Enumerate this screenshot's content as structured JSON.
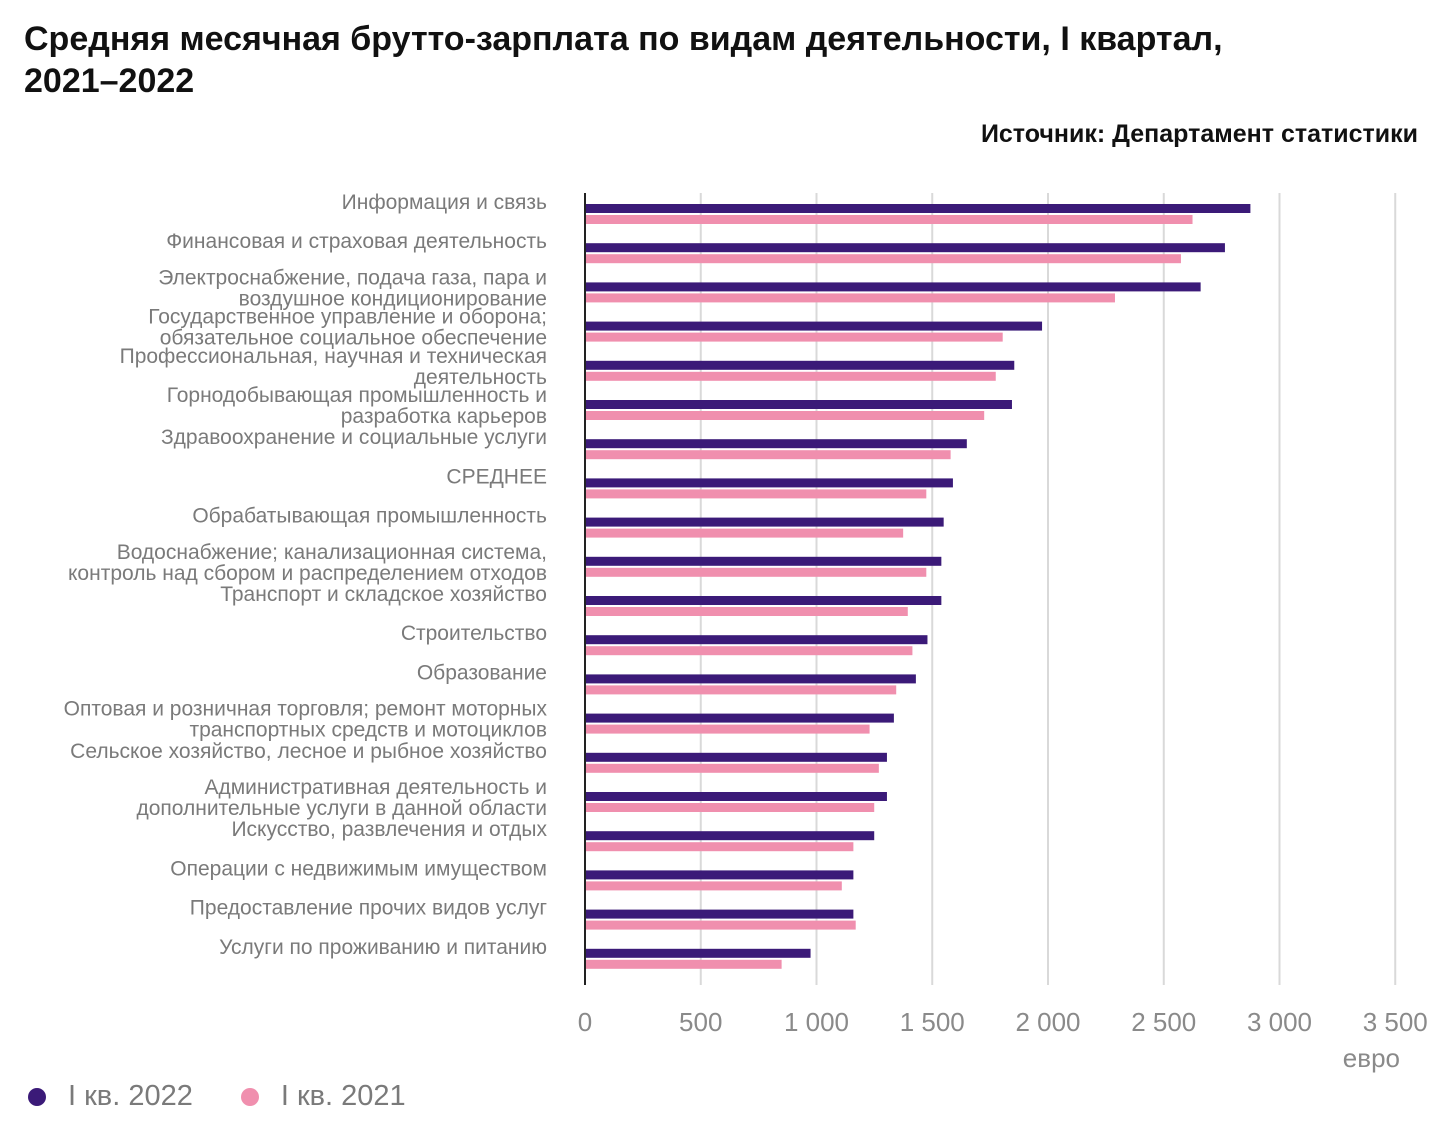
{
  "title": "Средняя месячная брутто-зарплата по видам деятельности, I квартал, 2021–2022",
  "source": "Источник: Департамент статистики",
  "legend": {
    "s2022": {
      "label": "I кв. 2022",
      "color": "#3b1a78"
    },
    "s2021": {
      "label": "I кв. 2021",
      "color": "#f08fae"
    }
  },
  "chart_data": {
    "type": "bar",
    "orientation": "horizontal",
    "categories": [
      [
        "Информация и связь"
      ],
      [
        "Финансовая и страховая деятельность"
      ],
      [
        "Электроснабжение, подача газа, пара и",
        "воздушное кондиционирование"
      ],
      [
        "Государственное управление и оборона;",
        "обязательное социальное обеспечение"
      ],
      [
        "Профессиональная, научная и техническая",
        "деятельность"
      ],
      [
        "Горнодобывающая промышленность и",
        "разработка карьеров"
      ],
      [
        "Здравоохранение и социальные услуги"
      ],
      [
        "СРЕДНЕЕ"
      ],
      [
        "Обрабатывающая промышленность"
      ],
      [
        "Водоснабжение; канализационная система,",
        "контроль над сбором и распределением отходов"
      ],
      [
        "Транспорт и складское хозяйство"
      ],
      [
        "Строительство"
      ],
      [
        "Образование"
      ],
      [
        "Оптовая и розничная торговля; ремонт моторных",
        "транспортных средств и мотоциклов"
      ],
      [
        "Сельское хозяйство, лесное и рыбное хозяйство"
      ],
      [
        "Административная деятельность и",
        "дополнительные услуги в данной области"
      ],
      [
        "Искусство, развлечения и отдых"
      ],
      [
        "Операции с недвижимым имуществом"
      ],
      [
        "Предоставление прочих видов услуг"
      ],
      [
        "Услуги по проживанию и питанию"
      ]
    ],
    "series": [
      {
        "name": "I кв. 2022",
        "color": "#3b1a78",
        "values": [
          2870,
          2760,
          2655,
          1970,
          1850,
          1840,
          1645,
          1585,
          1545,
          1535,
          1535,
          1475,
          1425,
          1330,
          1300,
          1300,
          1245,
          1155,
          1155,
          970
        ]
      },
      {
        "name": "I кв. 2021",
        "color": "#f08fae",
        "values": [
          2620,
          2570,
          2285,
          1800,
          1770,
          1720,
          1575,
          1470,
          1370,
          1470,
          1390,
          1410,
          1340,
          1225,
          1265,
          1245,
          1155,
          1105,
          1165,
          845
        ]
      }
    ],
    "xlim": [
      0,
      3500
    ],
    "xticks": [
      0,
      500,
      1000,
      1500,
      2000,
      2500,
      3000,
      3500
    ],
    "xtick_labels": [
      "0",
      "500",
      "1 000",
      "1 500",
      "2 000",
      "2 500",
      "3 000",
      "3 500"
    ],
    "xlabel": "евро",
    "grid": true
  }
}
